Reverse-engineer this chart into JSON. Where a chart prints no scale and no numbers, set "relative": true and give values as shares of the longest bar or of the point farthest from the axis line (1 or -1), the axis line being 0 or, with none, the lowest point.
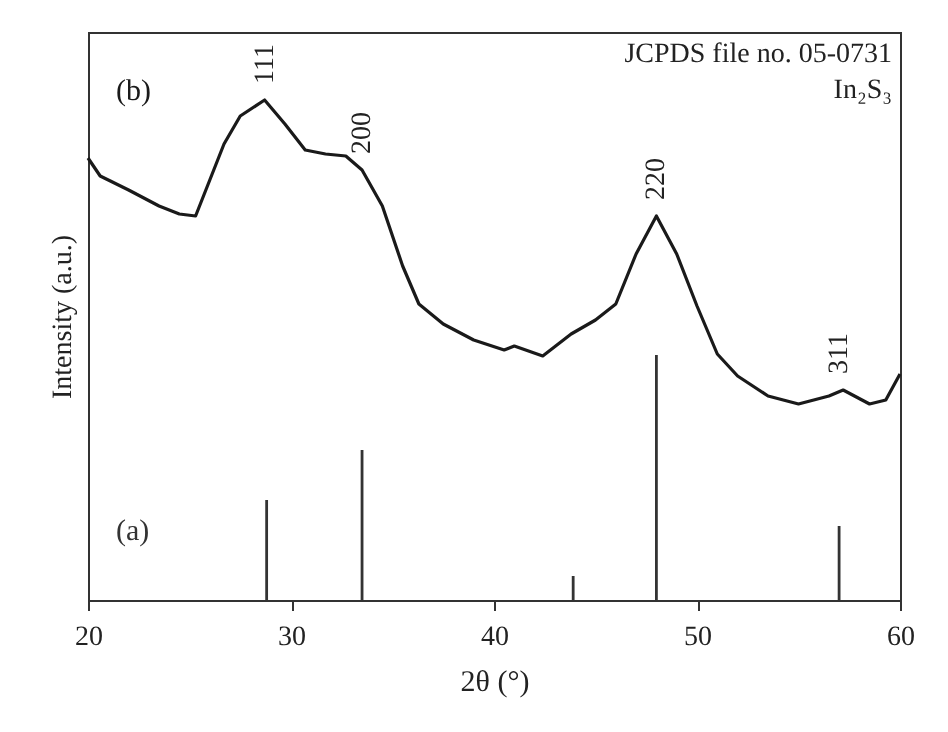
{
  "chart_data": {
    "type": "line",
    "relative": true,
    "xlabel": "2θ (°)",
    "ylabel": "Intensity (a.u.)",
    "xlim": [
      20,
      60
    ],
    "xticks": [
      20,
      30,
      40,
      50,
      60
    ],
    "marker": "none",
    "line_style": "solid",
    "series": [
      {
        "name": "(b)",
        "color": "#1a1a1a",
        "x": [
          20,
          20.6,
          22,
          23.5,
          24.5,
          25.3,
          26,
          26.7,
          27.5,
          28.7,
          29.7,
          30.7,
          31.7,
          32.7,
          33.5,
          34.5,
          35.5,
          36.3,
          37.5,
          39,
          40.5,
          41,
          42.4,
          43.8,
          45,
          46,
          47,
          48,
          49,
          50,
          51,
          52,
          53.5,
          55,
          56.5,
          57.2,
          58.5,
          59.3,
          60
        ],
        "values": [
          0.884,
          0.848,
          0.82,
          0.788,
          0.772,
          0.768,
          0.84,
          0.912,
          0.968,
          1.0,
          0.952,
          0.9,
          0.892,
          0.888,
          0.86,
          0.788,
          0.668,
          0.592,
          0.552,
          0.52,
          0.5,
          0.508,
          0.488,
          0.532,
          0.56,
          0.592,
          0.692,
          0.768,
          0.692,
          0.588,
          0.492,
          0.448,
          0.408,
          0.392,
          0.408,
          0.42,
          0.392,
          0.4,
          0.452
        ]
      },
      {
        "name": "(a)",
        "type": "bar",
        "color": "#333333",
        "x": [
          28.8,
          33.5,
          43.9,
          48.0,
          57.0
        ],
        "values": [
          0.2,
          0.3,
          0.048,
          0.49,
          0.148
        ]
      }
    ],
    "annotations": [
      {
        "text": "111",
        "x": 28.7,
        "y": 1.0
      },
      {
        "text": "200",
        "x": 33.5,
        "y": 0.86
      },
      {
        "text": "220",
        "x": 48,
        "y": 0.768
      },
      {
        "text": "311",
        "x": 57,
        "y": 0.42
      },
      "JCPDS file no. 05-0731",
      "In₂S₃"
    ]
  }
}
